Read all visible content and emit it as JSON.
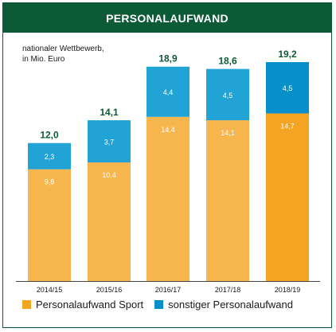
{
  "title": "PERSONALAUFWAND",
  "subtitle_line1": "nationaler Wettbewerb,",
  "subtitle_line2": "in Mio. Euro",
  "colors": {
    "header": "#0d5a37",
    "sport": "#f7b54e",
    "sport_highlight": "#f3a422",
    "other": "#22a3d6",
    "other_highlight": "#078fca",
    "total_label": "#0d5a37"
  },
  "legend": [
    {
      "label": "Personalaufwand Sport",
      "color": "#f3a422"
    },
    {
      "label": "sonstiger Personalaufwand",
      "color": "#078fca"
    }
  ],
  "chart_data": {
    "type": "bar",
    "stacked": true,
    "categories": [
      "2014/15",
      "2015/16",
      "2016/17",
      "2017/18",
      "2018/19"
    ],
    "series": [
      {
        "name": "Personalaufwand Sport",
        "values": [
          9.8,
          10.4,
          14.4,
          14.1,
          14.7
        ],
        "labels": [
          "9,8",
          "10,4",
          "14,4",
          "14,1",
          "14,7"
        ]
      },
      {
        "name": "sonstiger Personalaufwand",
        "values": [
          2.3,
          3.7,
          4.4,
          4.5,
          4.5
        ],
        "labels": [
          "2,3",
          "3,7",
          "4,4",
          "4,5",
          "4,5"
        ]
      }
    ],
    "totals": [
      12.0,
      14.1,
      18.9,
      18.6,
      19.2
    ],
    "total_labels": [
      "12,0",
      "14,1",
      "18,9",
      "18,6",
      "19,2"
    ],
    "highlight_index": 4,
    "ylim": [
      0,
      19.2
    ]
  }
}
